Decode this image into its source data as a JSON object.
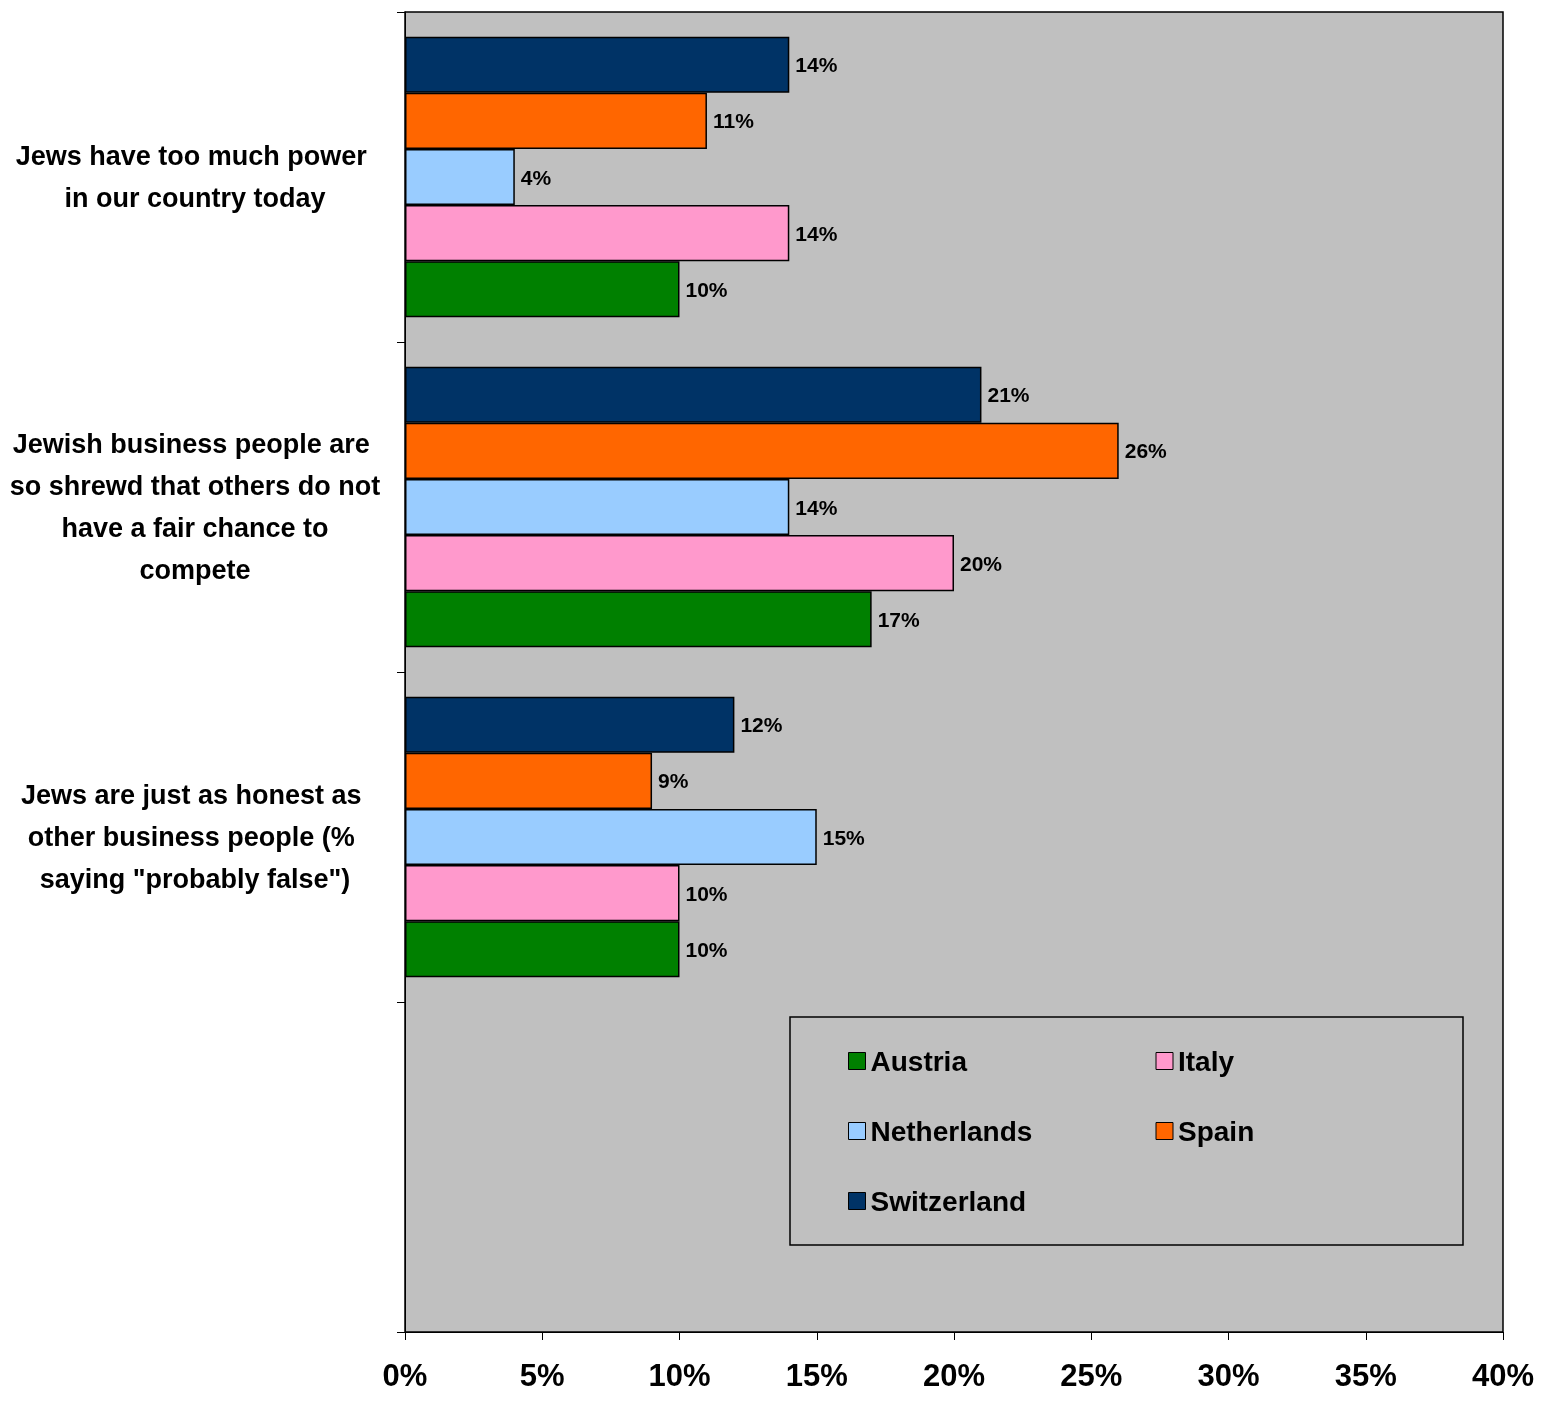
{
  "chart_data": {
    "type": "bar",
    "orientation": "horizontal",
    "categories": [
      "Jews have too much power in our country today",
      "Jewish business people are so shrewd that others do not have a fair chance to compete",
      "Jews are just as honest as other business people (% saying \"probably false\")",
      null
    ],
    "series": [
      {
        "name": "Austria",
        "color": "#008000",
        "values": [
          10,
          17,
          10,
          null
        ],
        "value_labels": [
          "10%",
          "17%",
          "10%",
          null
        ]
      },
      {
        "name": "Italy",
        "color": "#ff99cc",
        "values": [
          14,
          20,
          10,
          null
        ],
        "value_labels": [
          "14%",
          "20%",
          "10%",
          null
        ]
      },
      {
        "name": "Netherlands",
        "color": "#99ccff",
        "values": [
          4,
          14,
          15,
          null
        ],
        "value_labels": [
          "4%",
          "14%",
          "15%",
          null
        ]
      },
      {
        "name": "Spain",
        "color": "#ff6600",
        "values": [
          11,
          26,
          9,
          null
        ],
        "value_labels": [
          "11%",
          "26%",
          "9%",
          null
        ]
      },
      {
        "name": "Switzerland",
        "color": "#003366",
        "values": [
          14,
          21,
          12,
          null
        ],
        "value_labels": [
          "14%",
          "21%",
          "12%",
          null
        ]
      }
    ],
    "xlim": [
      0,
      40
    ],
    "xticks": [
      {
        "value": 0,
        "label": "0%"
      },
      {
        "value": 5,
        "label": "5%"
      },
      {
        "value": 10,
        "label": "10%"
      },
      {
        "value": 15,
        "label": "15%"
      },
      {
        "value": 20,
        "label": "20%"
      },
      {
        "value": 25,
        "label": "25%"
      },
      {
        "value": 30,
        "label": "30%"
      },
      {
        "value": 35,
        "label": "35%"
      },
      {
        "value": 40,
        "label": "40%"
      }
    ],
    "grid": false,
    "legend": "bottom right"
  }
}
